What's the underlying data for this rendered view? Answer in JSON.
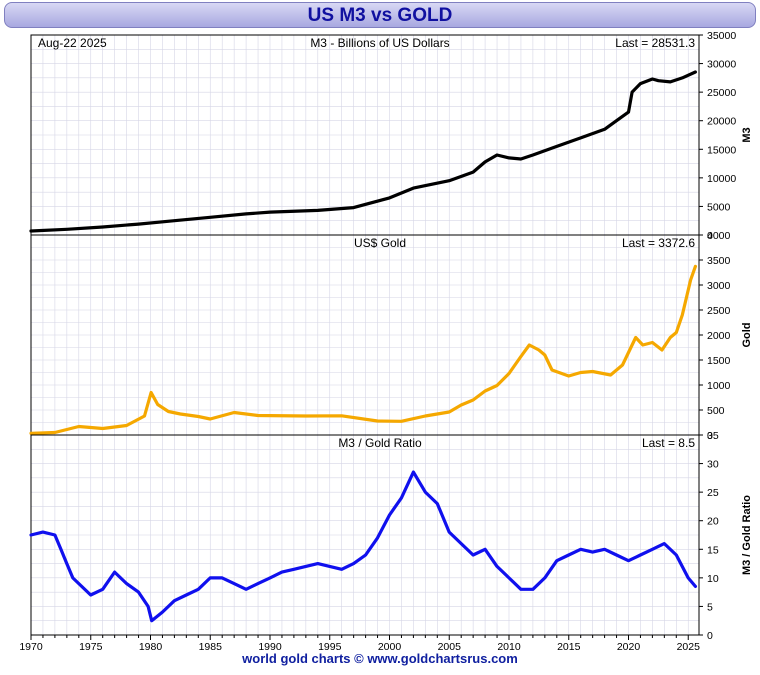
{
  "title": "US M3 vs GOLD",
  "footer": "world gold charts © www.goldchartsrus.com",
  "colors": {
    "m3": "#000000",
    "gold": "#f5a800",
    "ratio": "#1010ee",
    "grid": "#d6d6e6"
  },
  "chart_data": [
    {
      "type": "line",
      "date_label": "Aug-22  2025",
      "title": "M3 - Billions of US Dollars",
      "last_label": "Last = 28531.3",
      "ylabel": "M3",
      "xlim": [
        1970,
        2025.9
      ],
      "ylim": [
        0,
        35000
      ],
      "yticks": [
        0,
        5000,
        10000,
        15000,
        20000,
        25000,
        30000,
        35000
      ],
      "series": [
        {
          "x": [
            1970,
            1973,
            1976,
            1979,
            1982,
            1985,
            1988,
            1990,
            1994,
            1997,
            2000,
            2002,
            2005,
            2007,
            2008,
            2009,
            2010,
            2011,
            2012,
            2014,
            2016,
            2018,
            2019,
            2020.0,
            2020.3,
            2021,
            2022,
            2022.5,
            2023.5,
            2024.5,
            2025.6
          ],
          "y": [
            700,
            1000,
            1400,
            1900,
            2500,
            3100,
            3700,
            4000,
            4300,
            4800,
            6500,
            8200,
            9500,
            11000,
            12800,
            14000,
            13500,
            13300,
            14000,
            15500,
            17000,
            18500,
            20000,
            21500,
            25000,
            26500,
            27300,
            27000,
            26800,
            27500,
            28531
          ]
        }
      ]
    },
    {
      "type": "line",
      "title": "US$ Gold",
      "last_label": "Last = 3372.6",
      "ylabel": "Gold",
      "xlim": [
        1970,
        2025.9
      ],
      "ylim": [
        0,
        4000
      ],
      "yticks": [
        0,
        500,
        1000,
        1500,
        2000,
        2500,
        3000,
        3500,
        4000
      ],
      "series": [
        {
          "x": [
            1970,
            1972,
            1974,
            1976,
            1978,
            1979.5,
            1980.05,
            1980.6,
            1981.5,
            1982.5,
            1984,
            1985,
            1987,
            1989,
            1993,
            1996,
            1999,
            2001,
            2003,
            2005,
            2006,
            2007,
            2008,
            2009,
            2010,
            2011,
            2011.7,
            2012.5,
            2013,
            2013.6,
            2015,
            2016,
            2017,
            2018.5,
            2019.5,
            2020.6,
            2021.2,
            2022,
            2022.8,
            2023.5,
            2024,
            2024.5,
            2025.2,
            2025.6
          ],
          "y": [
            35,
            50,
            170,
            130,
            190,
            380,
            850,
            610,
            470,
            420,
            370,
            320,
            450,
            390,
            380,
            385,
            280,
            275,
            380,
            460,
            600,
            700,
            880,
            990,
            1230,
            1570,
            1800,
            1700,
            1600,
            1300,
            1180,
            1250,
            1270,
            1200,
            1400,
            1950,
            1800,
            1850,
            1700,
            1950,
            2050,
            2400,
            3100,
            3372.6
          ]
        }
      ]
    },
    {
      "type": "line",
      "title": "M3 / Gold Ratio",
      "last_label": "Last = 8.5",
      "ylabel": "M3 / Gold Ratio",
      "xlim": [
        1970,
        2025.9
      ],
      "ylim": [
        0,
        35
      ],
      "yticks": [
        0,
        5,
        10,
        15,
        20,
        25,
        30,
        35
      ],
      "xticks": [
        1970,
        1975,
        1980,
        1985,
        1990,
        1995,
        2000,
        2005,
        2010,
        2015,
        2020,
        2025
      ],
      "series": [
        {
          "x": [
            1970,
            1971,
            1972,
            1972.5,
            1973,
            1973.5,
            1974,
            1975,
            1976,
            1977,
            1978,
            1979,
            1979.8,
            1980.1,
            1981,
            1982,
            1983,
            1984,
            1985,
            1986,
            1987,
            1988,
            1989,
            1990,
            1991,
            1992,
            1993,
            1994,
            1995,
            1996,
            1997,
            1998,
            1999,
            2000,
            2001,
            2002,
            2003,
            2004,
            2005,
            2006,
            2007,
            2008,
            2009,
            2010,
            2011,
            2012,
            2013,
            2014,
            2015,
            2016,
            2017,
            2018,
            2019,
            2020,
            2021,
            2022,
            2023,
            2024,
            2025,
            2025.6
          ],
          "y": [
            17.5,
            18,
            17.5,
            15,
            12.5,
            10,
            9,
            7,
            8,
            11,
            9,
            7.5,
            5,
            2.5,
            4,
            6,
            7,
            8,
            10,
            10,
            9,
            8,
            9,
            10,
            11,
            11.5,
            12,
            12.5,
            12,
            11.5,
            12.5,
            14,
            17,
            21,
            24,
            28.5,
            25,
            23,
            18,
            16,
            14,
            15,
            12,
            10,
            8,
            8,
            10,
            13,
            14,
            15,
            14.5,
            15,
            14,
            13,
            14,
            15,
            16,
            14,
            10,
            8.5
          ]
        }
      ]
    }
  ]
}
